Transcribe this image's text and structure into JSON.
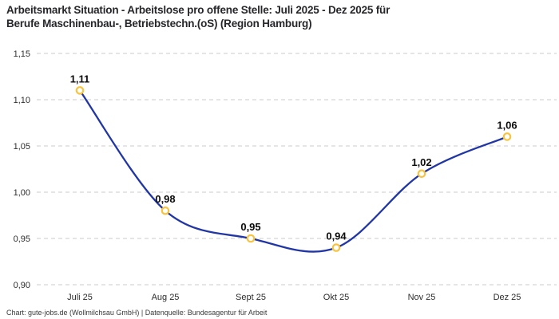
{
  "title": {
    "line1": "Arbeitsmarkt Situation - Arbeitslose pro offene Stelle: Juli 2025 - Dez 2025 für",
    "line2": "Berufe Maschinenbau-, Betriebstechn.(oS) (Region Hamburg)"
  },
  "footer": "Chart: gute-jobs.de (Wollmilchsau GmbH) | Datenquelle: Bundesagentur für Arbeit",
  "chart_data": {
    "type": "line",
    "title": "Arbeitsmarkt Situation - Arbeitslose pro offene Stelle: Juli 2025 - Dez 2025 für Berufe Maschinenbau-, Betriebstechn.(oS) (Region Hamburg)",
    "categories": [
      "Juli 25",
      "Aug 25",
      "Sept 25",
      "Okt 25",
      "Nov 25",
      "Dez 25"
    ],
    "values": [
      1.11,
      0.98,
      0.95,
      0.94,
      1.02,
      1.06
    ],
    "value_labels": [
      "1,11",
      "0,98",
      "0,95",
      "0,94",
      "1,02",
      "1,06"
    ],
    "y_ticks": [
      "1,15",
      "1,10",
      "1,05",
      "1,00",
      "0,95",
      "0,90"
    ],
    "y_tick_values": [
      1.15,
      1.1,
      1.05,
      1.0,
      0.95,
      0.9
    ],
    "ylim": [
      0.9,
      1.15
    ],
    "xlabel": "",
    "ylabel": "",
    "grid": "dashed-horizontal",
    "legend": "none",
    "line_color": "#2136a5",
    "marker_color": "#f8c33d",
    "marker_fill": "#ffffff",
    "grid_color": "#cbcbcb",
    "label_color": "#0b0b0b"
  }
}
